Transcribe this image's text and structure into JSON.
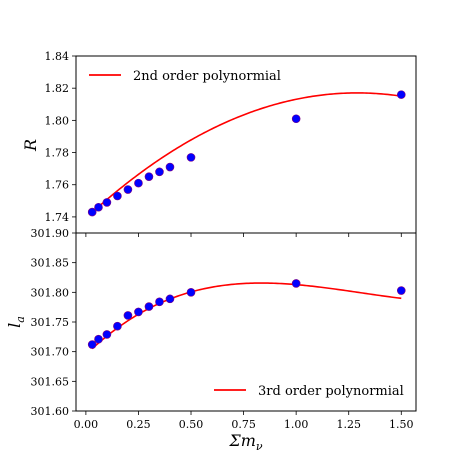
{
  "chart_data": [
    {
      "type": "scatter",
      "ylabel": "R",
      "ylim": [
        1.73,
        1.84
      ],
      "yticks": [
        "1.74",
        "1.76",
        "1.78",
        "1.80",
        "1.82",
        "1.84"
      ],
      "legend": {
        "label": "2nd order polynormial",
        "position": "upper-left"
      },
      "points": {
        "x": [
          0.03,
          0.06,
          0.1,
          0.15,
          0.2,
          0.25,
          0.3,
          0.35,
          0.4,
          0.5,
          1.0,
          1.5
        ],
        "y": [
          1.743,
          1.746,
          1.749,
          1.753,
          1.757,
          1.761,
          1.765,
          1.768,
          1.771,
          1.777,
          1.801,
          1.816
        ]
      },
      "fit": {
        "order": 2,
        "coefficients": [
          1.7392,
          0.1206,
          -0.0467
        ]
      },
      "colors": {
        "points": "#0000ff",
        "point_edge": "#800080",
        "line": "#ff0000"
      }
    },
    {
      "type": "scatter",
      "ylabel": "l_a",
      "ylim": [
        301.6,
        301.9
      ],
      "yticks": [
        "301.60",
        "301.65",
        "301.70",
        "301.75",
        "301.80",
        "301.85",
        "301.90"
      ],
      "xlabel": "Σm_ν",
      "xlim": [
        -0.047,
        1.57
      ],
      "xticks": [
        "0.00",
        "0.25",
        "0.50",
        "0.75",
        "1.00",
        "1.25",
        "1.50"
      ],
      "legend": {
        "label": "3rd order polynormial",
        "position": "lower-right"
      },
      "points": {
        "x": [
          0.03,
          0.06,
          0.1,
          0.15,
          0.2,
          0.25,
          0.3,
          0.35,
          0.4,
          0.5,
          1.0,
          1.5
        ],
        "y": [
          301.712,
          301.721,
          301.729,
          301.743,
          301.761,
          301.767,
          301.776,
          301.784,
          301.789,
          301.8,
          301.815,
          301.803
        ]
      },
      "fit": {
        "order": 3,
        "coefficients": [
          301.695,
          0.343,
          -0.302,
          0.077
        ]
      },
      "colors": {
        "points": "#0000ff",
        "point_edge": "#800080",
        "line": "#ff0000"
      }
    }
  ]
}
